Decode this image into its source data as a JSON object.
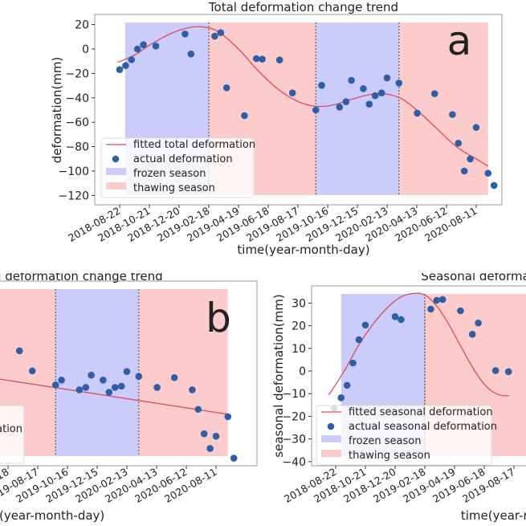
{
  "colors": {
    "frozen": "#ccccfa",
    "thawing": "#fccccc",
    "fit_line": "#d94d5a",
    "point": "#2f5ea8",
    "axis": "#999999"
  },
  "x_ticks": [
    "2018-08-22",
    "2018-10-21",
    "2018-12-20",
    "2019-02-18",
    "2019-04-19",
    "2019-06-18",
    "2019-08-17",
    "2019-10-16",
    "2019-12-15",
    "2020-02-13",
    "2020-04-13",
    "2020-06-12",
    "2020-08-11"
  ],
  "chart_data": [
    {
      "id": "a",
      "type": "scatter",
      "title": "Total deformation change trend",
      "panel_label": "a",
      "xlabel": "time(year-month-day)",
      "ylabel": "deformation(mm)",
      "x_unit": "days since 2018-08-22",
      "ylim": [
        -125,
        25
      ],
      "yticks": [
        20,
        0,
        -20,
        -40,
        -60,
        -80,
        -100,
        -120
      ],
      "legend": {
        "placement": "lower-left",
        "entries": [
          "fitted total deformation",
          "actual deformation",
          "frozen season",
          "thawing season"
        ]
      },
      "seasons": [
        {
          "type": "frozen",
          "start": 11,
          "end": 180
        },
        {
          "type": "thawing",
          "start": 180,
          "end": 396
        },
        {
          "type": "frozen",
          "start": 396,
          "end": 564
        },
        {
          "type": "thawing",
          "start": 564,
          "end": 744
        }
      ],
      "fit": {
        "x": [
          -4,
          30,
          60,
          100,
          140,
          170,
          200,
          240,
          280,
          320,
          360,
          396,
          430,
          470,
          510,
          540,
          570,
          600,
          640,
          680,
          720,
          744
        ],
        "y": [
          -11,
          -5,
          3,
          12,
          17.5,
          18,
          14,
          0,
          -18,
          -33,
          -43,
          -47,
          -46,
          -41,
          -37,
          -37,
          -41,
          -50,
          -65,
          -80,
          -90,
          -96
        ]
      },
      "points": {
        "x": [
          0,
          12,
          24,
          36,
          48,
          73,
          132,
          144,
          192,
          204,
          216,
          252,
          276,
          288,
          323,
          349,
          396,
          408,
          444,
          457,
          468,
          492,
          504,
          516,
          529,
          540,
          564,
          601,
          636,
          672,
          684,
          696,
          708,
          720,
          744,
          756
        ],
        "y": [
          -16.9,
          -13.6,
          -8.8,
          0,
          3.5,
          2.4,
          12.3,
          -4.1,
          10.5,
          13.4,
          -31.8,
          -54.6,
          -7.9,
          -8.3,
          -9.0,
          -36.0,
          -50.0,
          -29.8,
          -47.6,
          -43.2,
          -25.7,
          -32.5,
          -45.2,
          -38.2,
          -36.0,
          -23.7,
          -27.9,
          -52.6,
          -36.6,
          -53.7,
          -77.2,
          -100.0,
          -90.1,
          -64.3,
          -101.8,
          -111.8
        ]
      }
    },
    {
      "id": "b",
      "type": "scatter",
      "title": "Linear deformation change trend",
      "title_visible": "l deformation change trend",
      "panel_label": "b",
      "xlabel": "time(year-month-day)",
      "xlabel_visible": "e(year-month-day)",
      "legend": {
        "placement": "lower-left",
        "entries_visible": [
          "ation"
        ]
      },
      "seasons": [
        {
          "type": "thawing",
          "start": 180,
          "end": 396
        },
        {
          "type": "frozen",
          "start": 396,
          "end": 564
        },
        {
          "type": "thawing",
          "start": 564,
          "end": 744
        }
      ],
      "fit": {
        "x": [
          200,
          744
        ],
        "y": [
          -8,
          -42
        ]
      },
      "points": {
        "x": [
          228,
          240,
          276,
          323,
          349,
          396,
          408,
          444,
          457,
          468,
          492,
          504,
          516,
          529,
          540,
          564,
          601,
          636,
          672,
          684,
          696,
          708,
          720,
          744,
          756
        ],
        "y": [
          10,
          10,
          10,
          10,
          -6.5,
          -18,
          -14,
          -22,
          -20,
          -10,
          -14,
          -24,
          -20,
          -19,
          -7,
          -11,
          -20,
          -12,
          -22,
          -38,
          -58,
          -70,
          -60,
          -44,
          -78
        ]
      }
    },
    {
      "id": "c",
      "type": "scatter",
      "title": "Seasonal deformation change trend",
      "title_visible": "Seasonal deformat",
      "xlabel": "time(year-month-day)",
      "xlabel_visible": "time(year-m",
      "ylabel": "seasonal deformation(mm)",
      "ylim": [
        -42,
        37
      ],
      "yticks": [
        30,
        20,
        10,
        0,
        -10,
        -20,
        -30,
        -40
      ],
      "legend": {
        "placement": "lower-left",
        "entries": [
          "fitted seasonal deformation",
          "actual seasonal deformation",
          "frozen season",
          "thawing season"
        ]
      },
      "seasons": [
        {
          "type": "frozen",
          "start": 11,
          "end": 180
        },
        {
          "type": "thawing",
          "start": 180,
          "end": 396
        }
      ],
      "fit": {
        "x": [
          -14,
          0,
          20,
          40,
          60,
          80,
          100,
          120,
          140,
          160,
          175,
          190,
          210,
          230,
          250,
          270,
          290,
          310,
          330,
          350
        ],
        "y": [
          -10.5,
          -6,
          1,
          9,
          16,
          22,
          27,
          31,
          33.5,
          34.3,
          34,
          32,
          27,
          20,
          12,
          4,
          -3,
          -8,
          -10.5,
          -11
        ]
      },
      "points": {
        "x": [
          -3,
          11,
          23,
          35,
          47,
          60,
          120,
          132,
          192,
          204,
          216,
          252,
          276,
          288,
          323,
          349
        ],
        "y": [
          -16.5,
          -11.8,
          -6.3,
          3.5,
          13.8,
          20.3,
          24,
          22.7,
          27.3,
          31.2,
          31.6,
          26.6,
          16.2,
          21.2,
          0.2,
          -0.3
        ]
      }
    }
  ]
}
